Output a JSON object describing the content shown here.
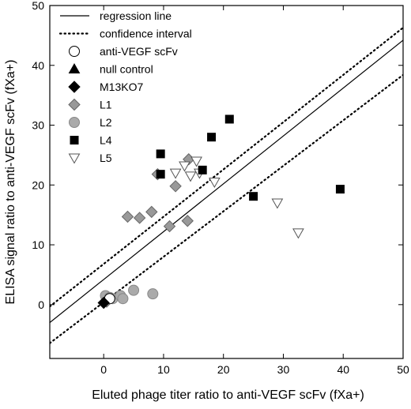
{
  "chart_data": {
    "type": "scatter",
    "title": "",
    "xlabel": "Eluted phage titer ratio to anti-VEGF scFv (fXa+)",
    "ylabel": "ELISA signal ratio to anti-VEGF scFv (fXa+)",
    "xlim": [
      -9,
      50
    ],
    "ylim": [
      -9,
      50
    ],
    "xticks": [
      0,
      10,
      20,
      30,
      40,
      50
    ],
    "yticks": [
      0,
      10,
      20,
      30,
      40,
      50
    ],
    "grid": false,
    "legend_position": "top-left",
    "regression": {
      "label": "regression line",
      "slope": 0.8,
      "intercept": 4.2,
      "color": "#000000"
    },
    "confidence": {
      "label": "confidence interval",
      "upper": {
        "slope": 0.79,
        "intercept": 6.8
      },
      "lower": {
        "slope": 0.76,
        "intercept": 0.4
      },
      "color": "#000000"
    },
    "series": [
      {
        "name": "anti-VEGF scFv",
        "marker": "circle",
        "fill": "#ffffff",
        "stroke": "#000000",
        "points": [
          [
            1,
            1
          ]
        ]
      },
      {
        "name": "null control",
        "marker": "triangle-up",
        "fill": "#000000",
        "stroke": "#000000",
        "points": []
      },
      {
        "name": "M13KO7",
        "marker": "diamond",
        "fill": "#000000",
        "stroke": "#000000",
        "points": [
          [
            0,
            0.3
          ]
        ]
      },
      {
        "name": "L1",
        "marker": "diamond",
        "fill": "#999999",
        "stroke": "#666666",
        "points": [
          [
            0.5,
            0.5
          ],
          [
            4,
            14.7
          ],
          [
            6,
            14.5
          ],
          [
            8,
            15.5
          ],
          [
            11,
            13.1
          ],
          [
            12,
            19.8
          ],
          [
            14,
            14
          ],
          [
            9,
            21.8
          ],
          [
            14.2,
            24.3
          ]
        ]
      },
      {
        "name": "L2",
        "marker": "circle",
        "fill": "#aaaaaa",
        "stroke": "#888888",
        "points": [
          [
            0.3,
            1.5
          ],
          [
            1,
            1.2
          ],
          [
            1.5,
            1
          ],
          [
            2.8,
            1.5
          ],
          [
            3.2,
            1
          ],
          [
            5,
            2.4
          ],
          [
            8.2,
            1.8
          ]
        ]
      },
      {
        "name": "L4",
        "marker": "square",
        "fill": "#000000",
        "stroke": "#000000",
        "points": [
          [
            9.5,
            25.2
          ],
          [
            9.5,
            21.8
          ],
          [
            16.5,
            22.5
          ],
          [
            18,
            28
          ],
          [
            21,
            31
          ],
          [
            25,
            18.1
          ],
          [
            39.5,
            19.3
          ]
        ]
      },
      {
        "name": "L5",
        "marker": "triangle-down",
        "fill": "#ffffff",
        "stroke": "#555555",
        "points": [
          [
            12,
            22
          ],
          [
            13.5,
            23.2
          ],
          [
            14.5,
            21.5
          ],
          [
            15.5,
            24
          ],
          [
            16,
            22
          ],
          [
            18.5,
            20.5
          ],
          [
            29,
            17
          ],
          [
            32.5,
            12
          ]
        ]
      }
    ]
  }
}
